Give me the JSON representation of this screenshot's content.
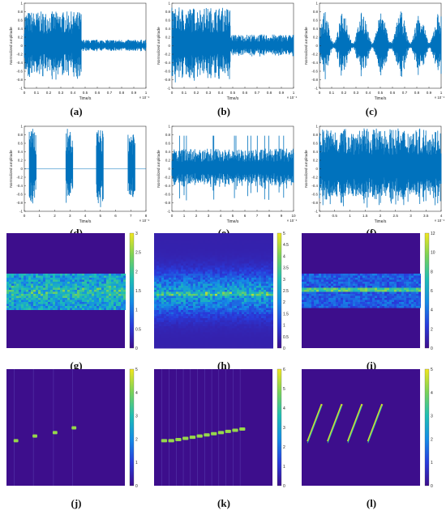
{
  "colors": {
    "signal": "#0072BD",
    "spectrogram_background": "#3d0e8c",
    "axis": "#333333"
  },
  "panels": [
    {
      "id": "a",
      "label": "(a)",
      "kind": "waveform",
      "xlabel": "Time/s",
      "ylabel": "Normalized amplitude",
      "xticks": [
        "0",
        "0.1",
        "0.2",
        "0.3",
        "0.4",
        "0.5",
        "0.6",
        "0.7",
        "0.8",
        "0.9",
        "1"
      ],
      "xexp": "× 10⁻⁴",
      "yticks": [
        "1",
        "0.8",
        "0.6",
        "0.4",
        "0.2",
        "0",
        "-0.2",
        "-0.4",
        "-0.6",
        "-0.8",
        "-1"
      ],
      "profile": {
        "type": "step",
        "split": 0.47,
        "amp_before": 0.85,
        "amp_after": 0.15
      }
    },
    {
      "id": "b",
      "label": "(b)",
      "kind": "waveform",
      "xlabel": "Time/s",
      "ylabel": "Normalized amplitude",
      "xticks": [
        "0",
        "0.1",
        "0.2",
        "0.3",
        "0.4",
        "0.5",
        "0.6",
        "0.7",
        "0.8",
        "0.9",
        "1"
      ],
      "xexp": "× 10⁻⁴",
      "yticks": [
        "1",
        "0.8",
        "0.6",
        "0.4",
        "0.2",
        "0",
        "-0.2",
        "-0.4",
        "-0.6",
        "-0.8",
        "-1"
      ],
      "profile": {
        "type": "step",
        "split": 0.48,
        "amp_before": 0.95,
        "amp_after": 0.28
      }
    },
    {
      "id": "c",
      "label": "(c)",
      "kind": "waveform",
      "xlabel": "Time/s",
      "ylabel": "Normalized amplitude",
      "xticks": [
        "0",
        "0.1",
        "0.2",
        "0.3",
        "0.4",
        "0.5",
        "0.6",
        "0.7",
        "0.8",
        "0.9",
        "1"
      ],
      "xexp": "× 10⁻⁴",
      "yticks": [
        "1",
        "0.8",
        "0.6",
        "0.4",
        "0.2",
        "0",
        "-0.2",
        "-0.4",
        "-0.6",
        "-0.8",
        "-1"
      ],
      "profile": {
        "type": "noise",
        "amp": 0.85
      }
    },
    {
      "id": "d",
      "label": "(d)",
      "kind": "waveform",
      "xlabel": "Time/s",
      "ylabel": "Normalized amplitude",
      "xticks": [
        "0",
        "1",
        "2",
        "3",
        "4",
        "5",
        "6",
        "7",
        "8"
      ],
      "xexp": "× 10⁻⁴",
      "yticks": [
        "1",
        "0.8",
        "0.6",
        "0.4",
        "0.2",
        "0",
        "-0.2",
        "-0.4",
        "-0.6",
        "-0.8",
        "-1"
      ],
      "profile": {
        "type": "bursts",
        "centers": [
          0.07,
          0.37,
          0.62,
          0.88
        ],
        "width": 0.06,
        "amp": 1.0
      }
    },
    {
      "id": "e",
      "label": "(e)",
      "kind": "waveform",
      "xlabel": "Time/s",
      "ylabel": "Normalized amplitude",
      "xticks": [
        "0",
        "1",
        "2",
        "3",
        "4",
        "5",
        "6",
        "7",
        "8",
        "9",
        "10"
      ],
      "xexp": "× 10⁻⁴",
      "yticks": [
        "1",
        "0.8",
        "0.6",
        "0.4",
        "0.2",
        "0",
        "-0.2",
        "-0.4",
        "-0.6",
        "-0.8",
        "-1"
      ],
      "profile": {
        "type": "band",
        "amp": 0.5,
        "spikes": 0.82
      }
    },
    {
      "id": "f",
      "label": "(f)",
      "kind": "waveform",
      "xlabel": "Time/s",
      "ylabel": "Normalized amplitude",
      "xticks": [
        "0",
        "0.5",
        "1",
        "1.5",
        "2",
        "2.5",
        "3",
        "3.5",
        "4"
      ],
      "xexp": "× 10⁻⁴",
      "yticks": [
        "1",
        "0.8",
        "0.6",
        "0.4",
        "0.2",
        "0",
        "-0.2",
        "-0.4",
        "-0.6",
        "-0.8",
        "-1"
      ],
      "profile": {
        "type": "full",
        "amp": 1.0
      }
    },
    {
      "id": "g",
      "label": "(g)",
      "kind": "spectrogram",
      "cbar": [
        "3",
        "2.5",
        "2",
        "1.5",
        "1",
        "0.5",
        "0"
      ],
      "profile": {
        "type": "band",
        "top": 0.35,
        "bottom": 0.66,
        "peak": 0.5
      }
    },
    {
      "id": "h",
      "label": "(h)",
      "kind": "spectrogram",
      "cbar": [
        "5",
        "4.5",
        "4",
        "3.5",
        "3",
        "2.5",
        "2",
        "1.5",
        "1",
        "0.5",
        "0"
      ],
      "profile": {
        "type": "diffuse",
        "center": 0.52
      }
    },
    {
      "id": "i",
      "label": "(i)",
      "kind": "spectrogram",
      "cbar": [
        "12",
        "10",
        "8",
        "6",
        "4",
        "2",
        "0"
      ],
      "profile": {
        "type": "line_band",
        "top": 0.34,
        "bottom": 0.65,
        "line": 0.48
      }
    },
    {
      "id": "j",
      "label": "(j)",
      "kind": "spectrogram",
      "cbar": [
        "5",
        "4",
        "3",
        "2",
        "1",
        "0"
      ],
      "profile": {
        "type": "hops",
        "segments": [
          [
            0.06,
            0.6
          ],
          [
            0.22,
            0.56
          ],
          [
            0.39,
            0.53
          ],
          [
            0.55,
            0.49
          ]
        ],
        "seg_w": 0.04
      }
    },
    {
      "id": "k",
      "label": "(k)",
      "kind": "spectrogram",
      "cbar": [
        "6",
        "5",
        "4",
        "3",
        "2",
        "1",
        "0"
      ],
      "profile": {
        "type": "hops",
        "segments": [
          [
            0.06,
            0.6
          ],
          [
            0.12,
            0.6
          ],
          [
            0.18,
            0.59
          ],
          [
            0.24,
            0.58
          ],
          [
            0.3,
            0.57
          ],
          [
            0.36,
            0.56
          ],
          [
            0.42,
            0.55
          ],
          [
            0.48,
            0.54
          ],
          [
            0.54,
            0.53
          ],
          [
            0.6,
            0.52
          ],
          [
            0.66,
            0.51
          ],
          [
            0.72,
            0.5
          ]
        ],
        "seg_w": 0.05
      }
    },
    {
      "id": "l",
      "label": "(l)",
      "kind": "spectrogram",
      "cbar": [
        "5",
        "4",
        "3",
        "2",
        "1",
        "0"
      ],
      "profile": {
        "type": "chirps",
        "starts": [
          0.05,
          0.22,
          0.39,
          0.56
        ],
        "len": 0.12,
        "y_from": 0.62,
        "y_to": 0.3
      }
    }
  ]
}
